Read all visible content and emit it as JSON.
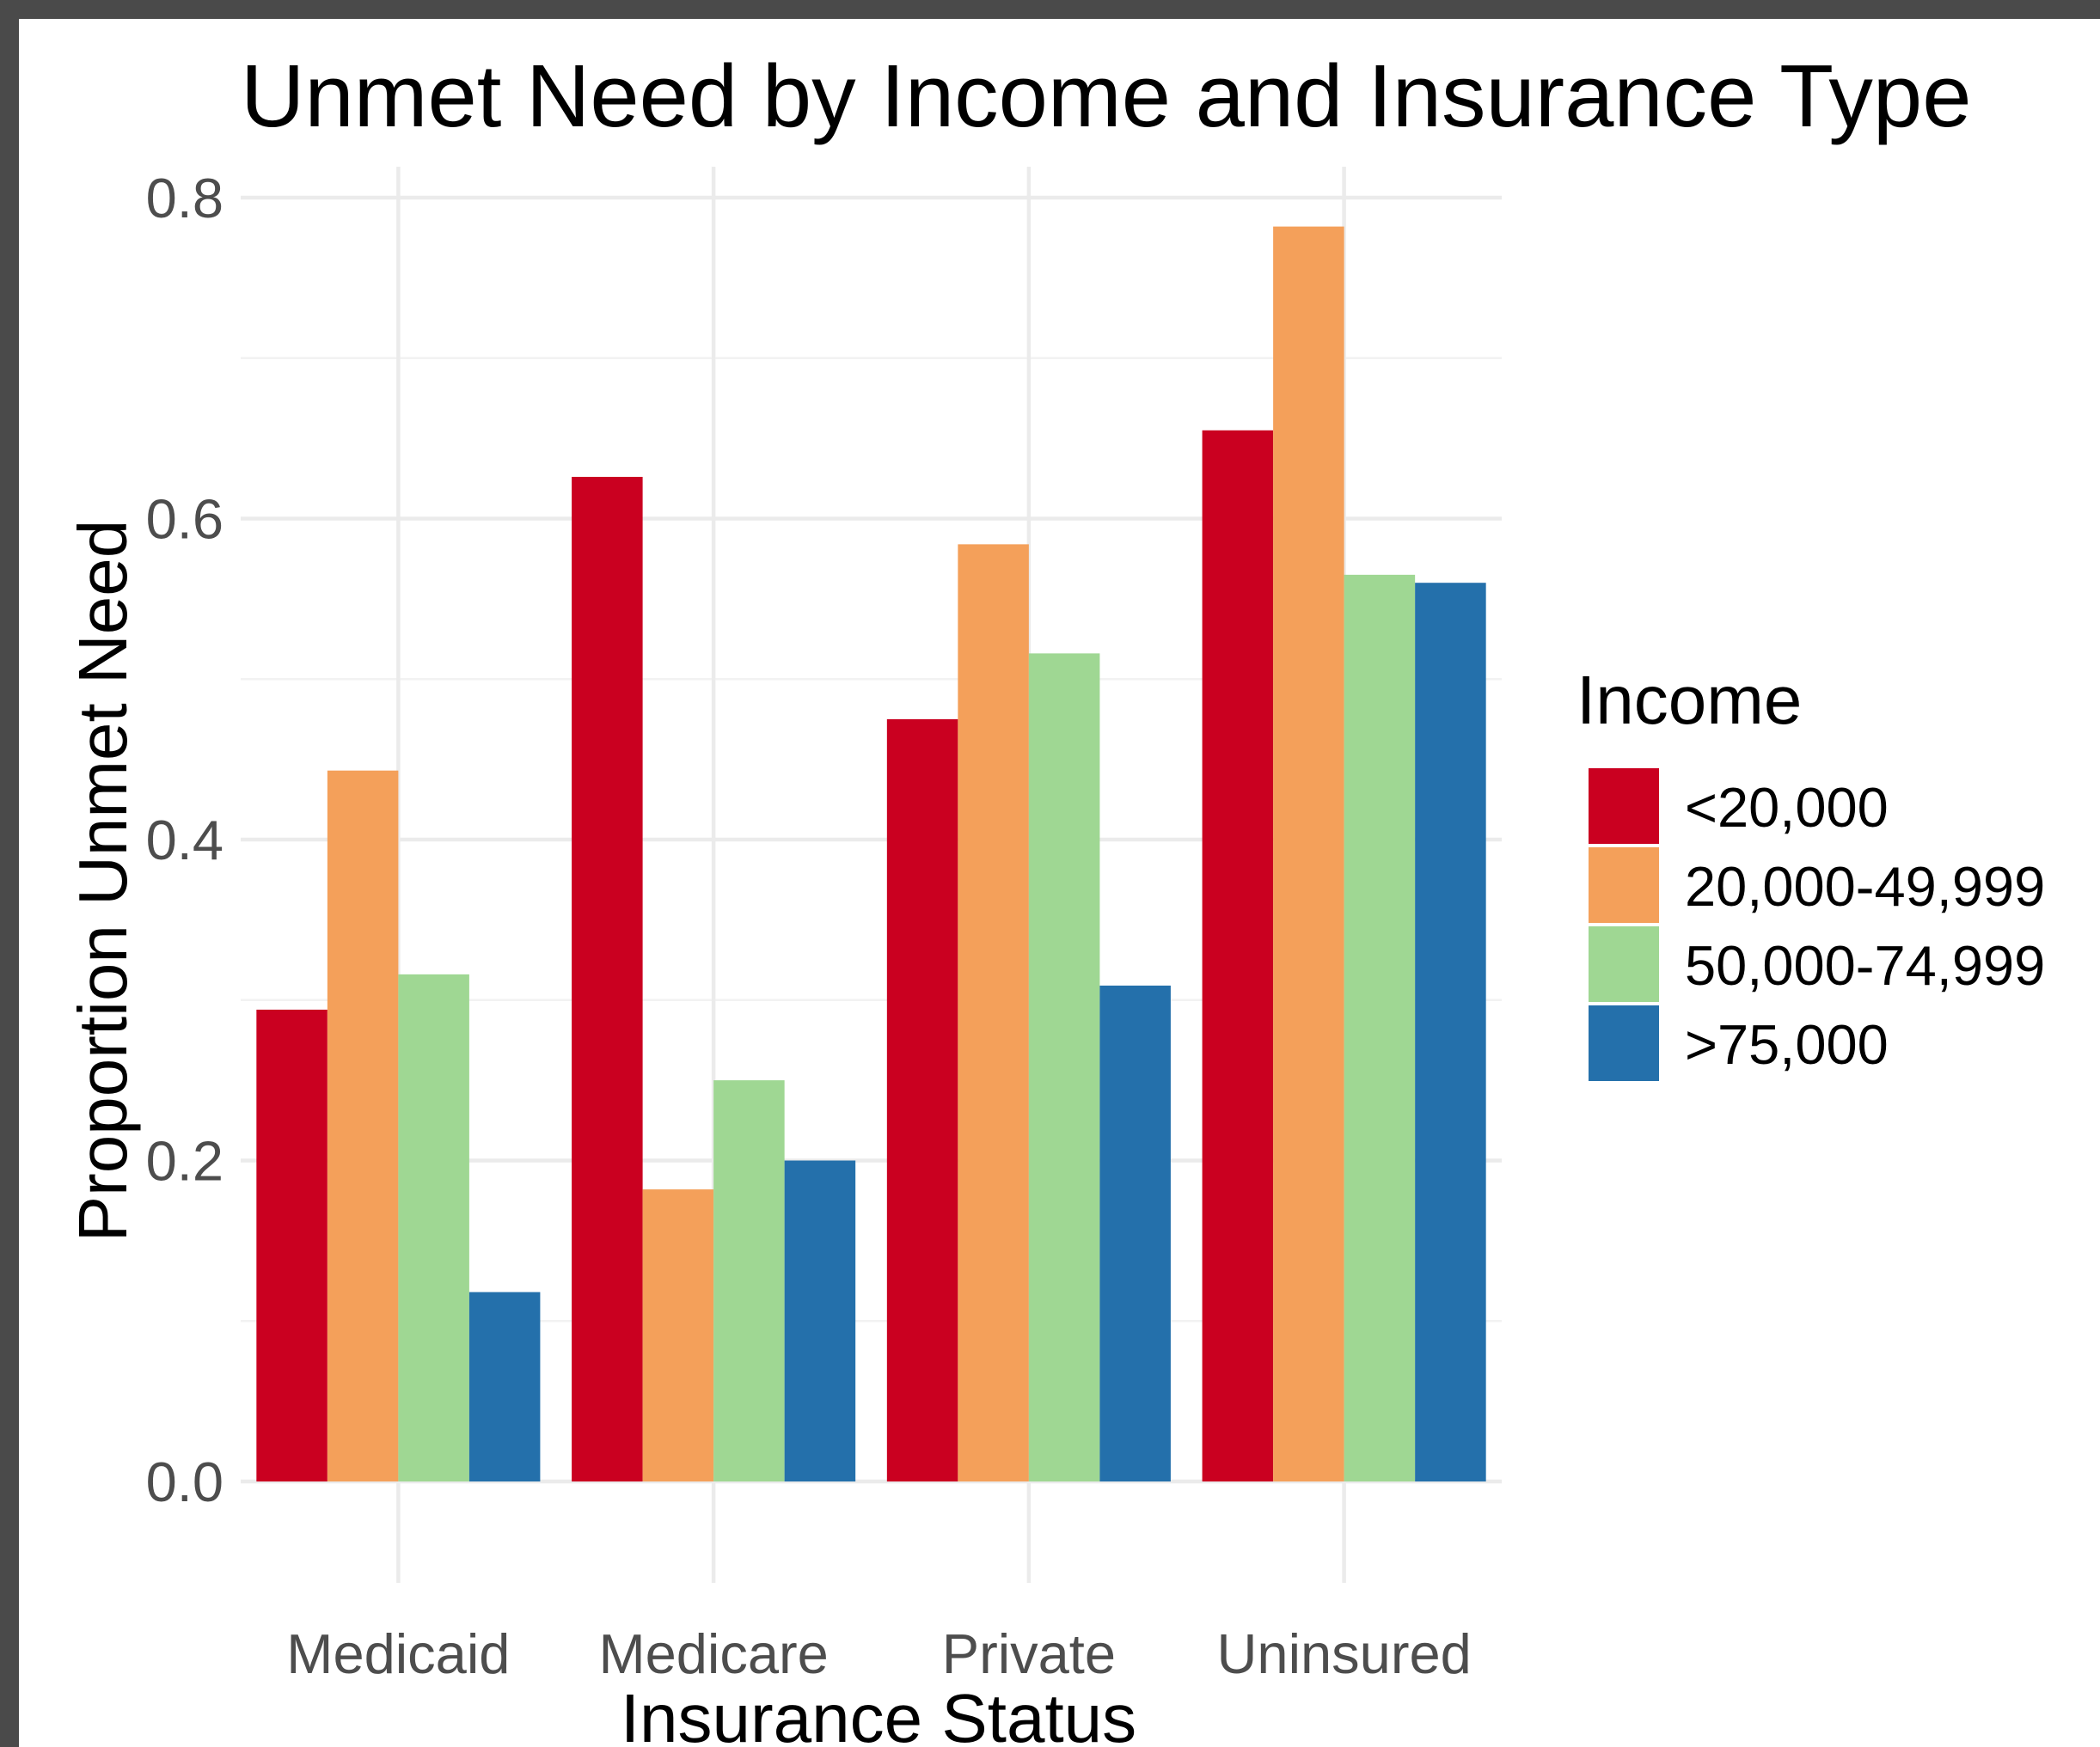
{
  "chart_data": {
    "type": "bar",
    "title": "Unmet Need by Income and Insurance Type",
    "xlabel": "Insurance Status",
    "ylabel": "Proportion Unmet Need",
    "categories": [
      "Medicaid",
      "Medicare",
      "Private",
      "Uninsured"
    ],
    "ylim": [
      0,
      0.8
    ],
    "yticks": [
      "0.0",
      "0.2",
      "0.4",
      "0.6",
      "0.8"
    ],
    "grid": true,
    "legend": {
      "title": "Income",
      "placement": "right"
    },
    "series": [
      {
        "name": "<20,000",
        "color": "#ca0020",
        "values": [
          0.294,
          0.626,
          0.475,
          0.655
        ]
      },
      {
        "name": "20,000-49,999",
        "color": "#f4a05a",
        "values": [
          0.443,
          0.182,
          0.584,
          0.782
        ]
      },
      {
        "name": "50,000-74,999",
        "color": "#9fd793",
        "values": [
          0.316,
          0.25,
          0.516,
          0.565
        ]
      },
      {
        "name": ">75,000",
        "color": "#2470ab",
        "values": [
          0.118,
          0.2,
          0.309,
          0.56
        ]
      }
    ]
  }
}
